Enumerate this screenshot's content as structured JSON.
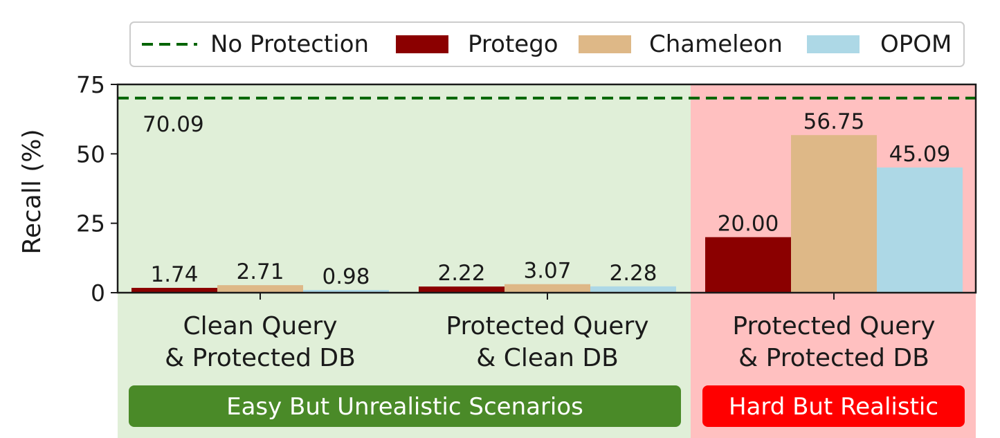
{
  "chart_data": {
    "type": "bar",
    "ylabel": "Recall (%)",
    "ylim": [
      0,
      75
    ],
    "yticks": [
      "0",
      "25",
      "50",
      "75"
    ],
    "categories": [
      [
        "Clean Query",
        "& Protected DB"
      ],
      [
        "Protected Query",
        "& Clean DB"
      ],
      [
        "Protected Query",
        "& Protected DB"
      ]
    ],
    "series": [
      {
        "name": "Protego",
        "color": "#8b0000",
        "values": [
          1.74,
          2.22,
          20.0
        ],
        "labels": [
          "1.74",
          "2.22",
          "20.00"
        ]
      },
      {
        "name": "Chameleon",
        "color": "#deb887",
        "values": [
          2.71,
          3.07,
          56.75
        ],
        "labels": [
          "2.71",
          "3.07",
          "56.75"
        ]
      },
      {
        "name": "OPOM",
        "color": "#add8e6",
        "values": [
          0.98,
          2.28,
          45.09
        ],
        "labels": [
          "0.98",
          "2.28",
          "45.09"
        ]
      }
    ],
    "baseline": {
      "name": "No Protection",
      "value": 70.09,
      "label": "70.09",
      "color": "#006400",
      "style": "dashed"
    },
    "legend_position": "top",
    "regions": [
      {
        "label": "Easy But Unrealistic Scenarios",
        "bg_color": "#e0efd8",
        "badge_color": "#4a8a28",
        "categories": [
          0,
          1
        ]
      },
      {
        "label": "Hard But Realistic",
        "bg_color": "#ffc0c0",
        "badge_color": "#ff0000",
        "categories": [
          2
        ]
      }
    ],
    "grid": false
  }
}
